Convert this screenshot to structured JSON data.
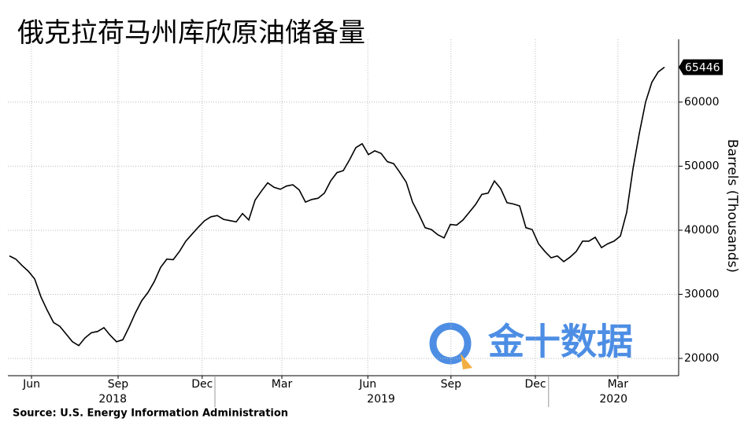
{
  "chart_data": {
    "type": "line",
    "title": "俄克拉荷马州库欣原油储备量",
    "y_axis_label": "Barrels (Thousands)",
    "source": "Source: U.S. Energy Information Administration",
    "watermark": "金十数据",
    "color": "#000000",
    "values": [
      36000,
      35500,
      34500,
      33600,
      32400,
      29600,
      27500,
      25600,
      25000,
      23800,
      22600,
      22000,
      23200,
      24000,
      24200,
      24800,
      23600,
      22600,
      22900,
      24900,
      27100,
      29000,
      30300,
      32000,
      34200,
      35500,
      35400,
      36700,
      38300,
      39400,
      40500,
      41500,
      42100,
      42300,
      41700,
      41500,
      41300,
      42600,
      41600,
      44700,
      46100,
      47400,
      46700,
      46400,
      46900,
      47100,
      46300,
      44400,
      44800,
      45000,
      45800,
      47700,
      49000,
      49300,
      51000,
      52900,
      53500,
      51800,
      52400,
      52000,
      50700,
      50400,
      49000,
      47500,
      44400,
      42500,
      40400,
      40100,
      39300,
      38800,
      40900,
      40800,
      41600,
      42800,
      44000,
      45600,
      45800,
      47700,
      46500,
      44300,
      44100,
      43800,
      40400,
      40100,
      37900,
      36700,
      35700,
      36000,
      35100,
      35800,
      36700,
      38300,
      38300,
      38900,
      37300,
      37900,
      38300,
      39100,
      42800,
      49600,
      55100,
      60000,
      63100,
      64700,
      65446
    ],
    "xlim": [
      -0.25,
      106.25
    ],
    "xticks": [
      {
        "value": 3.5,
        "label": "Jun"
      },
      {
        "value": 17.25,
        "label": "Sep"
      },
      {
        "value": 30.6,
        "label": "Dec"
      },
      {
        "value": 43.25,
        "label": "Mar"
      },
      {
        "value": 56.9,
        "label": "Jun"
      },
      {
        "value": 70.1,
        "label": "Sep"
      },
      {
        "value": 83.5,
        "label": "Dec"
      },
      {
        "value": 96.6,
        "label": "Mar"
      }
    ],
    "year_labels": [
      {
        "value": 16.4,
        "label": "2018"
      },
      {
        "value": 59,
        "label": "2019"
      },
      {
        "value": 95.9,
        "label": "2020"
      }
    ],
    "ylim": [
      17300,
      69800
    ],
    "yticks": [
      20000,
      30000,
      40000,
      50000,
      60000
    ],
    "grid": true
  }
}
